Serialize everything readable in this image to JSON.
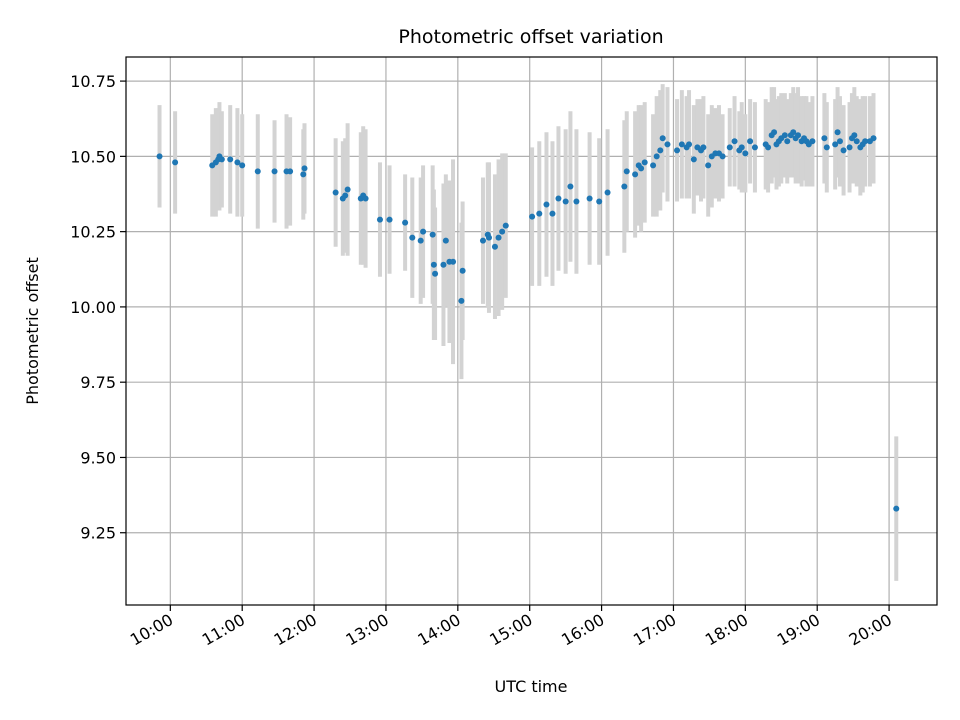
{
  "chart_data": {
    "type": "scatter",
    "title": "Photometric offset variation",
    "xlabel": "UTC time",
    "ylabel": "Photometric offset",
    "x_ticks": [
      "10:00",
      "11:00",
      "12:00",
      "13:00",
      "14:00",
      "15:00",
      "16:00",
      "17:00",
      "18:00",
      "19:00",
      "20:00"
    ],
    "y_ticks": [
      "9.25",
      "9.50",
      "9.75",
      "10.00",
      "10.25",
      "10.50",
      "10.75"
    ],
    "xlim": [
      "09:23",
      "20:40"
    ],
    "ylim": [
      9.01,
      10.83
    ],
    "grid": true,
    "colors": {
      "points": "#1f77b4",
      "errorbars": "#d3d3d3",
      "grid": "#b0b0b0"
    },
    "series": [
      {
        "x": [
          "09:51",
          "10:04",
          "10:35",
          "10:38",
          "10:40",
          "10:41",
          "10:43",
          "10:50",
          "10:56",
          "11:00",
          "11:13",
          "11:27",
          "11:37",
          "11:40",
          "11:51",
          "11:52",
          "12:18",
          "12:24",
          "12:26",
          "12:28",
          "12:39",
          "12:41",
          "12:43",
          "12:55",
          "13:03",
          "13:16",
          "13:22",
          "13:29",
          "13:31",
          "13:39",
          "13:40",
          "13:41",
          "13:48",
          "13:50",
          "13:53",
          "13:56",
          "14:03",
          "14:04",
          "14:21",
          "14:25",
          "14:26",
          "14:31",
          "14:34",
          "14:37",
          "14:40",
          "15:02",
          "15:08",
          "15:14",
          "15:19",
          "15:24",
          "15:30",
          "15:34",
          "15:39",
          "15:50",
          "15:58",
          "16:05",
          "16:19",
          "16:21",
          "16:28",
          "16:31",
          "16:33",
          "16:36",
          "16:43",
          "16:46",
          "16:49",
          "16:51",
          "16:55",
          "17:03",
          "17:07",
          "17:11",
          "17:13",
          "17:17",
          "17:20",
          "17:23",
          "17:25",
          "17:29",
          "17:32",
          "17:35",
          "17:38",
          "17:41",
          "17:47",
          "17:51",
          "17:55",
          "17:57",
          "18:00",
          "18:04",
          "18:08",
          "18:17",
          "18:19",
          "18:22",
          "18:24",
          "18:26",
          "18:28",
          "18:30",
          "18:33",
          "18:35",
          "18:38",
          "18:40",
          "18:42",
          "18:44",
          "18:47",
          "18:49",
          "18:51",
          "18:53",
          "18:56",
          "19:06",
          "19:08",
          "19:15",
          "19:17",
          "19:19",
          "19:22",
          "19:27",
          "19:29",
          "19:31",
          "19:33",
          "19:36",
          "19:38",
          "19:40",
          "19:44",
          "19:47",
          "20:06"
        ],
        "y": [
          10.5,
          10.48,
          10.47,
          10.48,
          10.49,
          10.5,
          10.49,
          10.49,
          10.48,
          10.47,
          10.45,
          10.45,
          10.45,
          10.45,
          10.44,
          10.46,
          10.38,
          10.36,
          10.37,
          10.39,
          10.36,
          10.37,
          10.36,
          10.29,
          10.29,
          10.28,
          10.23,
          10.22,
          10.25,
          10.24,
          10.14,
          10.11,
          10.14,
          10.22,
          10.15,
          10.15,
          10.02,
          10.12,
          10.22,
          10.24,
          10.23,
          10.2,
          10.23,
          10.25,
          10.27,
          10.3,
          10.31,
          10.34,
          10.31,
          10.36,
          10.35,
          10.4,
          10.35,
          10.36,
          10.35,
          10.38,
          10.4,
          10.45,
          10.44,
          10.47,
          10.46,
          10.48,
          10.47,
          10.5,
          10.52,
          10.56,
          10.54,
          10.52,
          10.54,
          10.53,
          10.54,
          10.49,
          10.53,
          10.52,
          10.53,
          10.47,
          10.5,
          10.51,
          10.51,
          10.5,
          10.53,
          10.55,
          10.52,
          10.53,
          10.51,
          10.55,
          10.53,
          10.54,
          10.53,
          10.57,
          10.58,
          10.54,
          10.55,
          10.56,
          10.57,
          10.55,
          10.57,
          10.58,
          10.56,
          10.57,
          10.55,
          10.56,
          10.55,
          10.54,
          10.55,
          10.56,
          10.53,
          10.54,
          10.58,
          10.55,
          10.52,
          10.53,
          10.56,
          10.57,
          10.55,
          10.53,
          10.54,
          10.55,
          10.55,
          10.56,
          9.33
        ],
        "yerr": [
          0.17,
          0.17,
          0.17,
          0.18,
          0.17,
          0.18,
          0.16,
          0.18,
          0.18,
          0.17,
          0.19,
          0.17,
          0.19,
          0.18,
          0.15,
          0.15,
          0.18,
          0.19,
          0.19,
          0.22,
          0.22,
          0.23,
          0.23,
          0.19,
          0.18,
          0.16,
          0.2,
          0.21,
          0.22,
          0.23,
          0.25,
          0.22,
          0.27,
          0.22,
          0.27,
          0.34,
          0.26,
          0.23,
          0.21,
          0.24,
          0.25,
          0.24,
          0.26,
          0.26,
          0.24,
          0.23,
          0.24,
          0.24,
          0.24,
          0.24,
          0.24,
          0.25,
          0.24,
          0.22,
          0.21,
          0.21,
          0.22,
          0.2,
          0.21,
          0.2,
          0.21,
          0.2,
          0.17,
          0.2,
          0.2,
          0.18,
          0.19,
          0.17,
          0.18,
          0.17,
          0.18,
          0.18,
          0.16,
          0.17,
          0.17,
          0.17,
          0.17,
          0.15,
          0.16,
          0.14,
          0.13,
          0.15,
          0.13,
          0.15,
          0.13,
          0.14,
          0.15,
          0.15,
          0.15,
          0.16,
          0.15,
          0.15,
          0.15,
          0.15,
          0.14,
          0.14,
          0.14,
          0.15,
          0.15,
          0.16,
          0.15,
          0.14,
          0.15,
          0.14,
          0.15,
          0.15,
          0.15,
          0.15,
          0.15,
          0.15,
          0.15,
          0.15,
          0.15,
          0.16,
          0.15,
          0.16,
          0.16,
          0.15,
          0.15,
          0.15,
          0.24
        ]
      }
    ]
  }
}
